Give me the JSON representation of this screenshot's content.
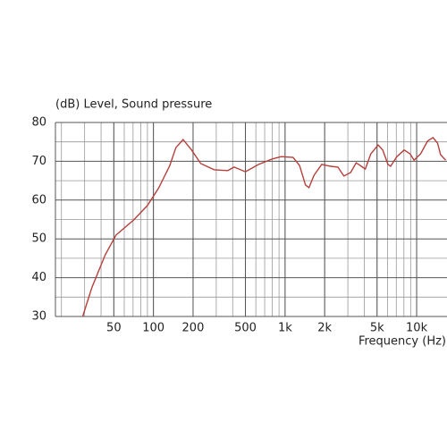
{
  "chart_data": {
    "type": "line",
    "ylabel": "(dB)  Level, Sound pressure",
    "xlabel": "Frequency  (Hz)",
    "xscale": "log",
    "xlim": [
      18,
      17000
    ],
    "ylim": [
      30,
      80
    ],
    "xticks": [
      50,
      100,
      200,
      500,
      {
        "value": 1000,
        "label": "1k"
      },
      {
        "value": 2000,
        "label": "2k"
      },
      {
        "value": 5000,
        "label": "5k"
      },
      {
        "value": 10000,
        "label": "10k"
      }
    ],
    "xgrid": [
      20,
      30,
      40,
      50,
      60,
      70,
      80,
      90,
      100,
      200,
      300,
      400,
      500,
      600,
      700,
      800,
      900,
      1000,
      2000,
      3000,
      4000,
      5000,
      6000,
      7000,
      8000,
      9000,
      10000
    ],
    "yticks": [
      30,
      40,
      50,
      60,
      70,
      80
    ],
    "ygrid": [
      35,
      45,
      55,
      65,
      75
    ],
    "grid": true,
    "series": [
      {
        "color": "#b5403c",
        "x": [
          29,
          34,
          43,
          52,
          71,
          90,
          110,
          133,
          148,
          168,
          195,
          229,
          290,
          367,
          410,
          500,
          630,
          800,
          935,
          1150,
          1290,
          1430,
          1520,
          1660,
          1900,
          2220,
          2520,
          2800,
          3150,
          3470,
          3800,
          4070,
          4480,
          5100,
          5520,
          6060,
          6340,
          7070,
          8040,
          8930,
          9540,
          10700,
          12100,
          13300,
          14400,
          15200,
          16600
        ],
        "values": [
          30,
          37.4,
          45.9,
          51,
          54.9,
          58.6,
          63.2,
          68.9,
          73.5,
          75.6,
          72.9,
          69.4,
          67.8,
          67.6,
          68.5,
          67.3,
          69.2,
          70.6,
          71.2,
          71,
          68.9,
          63.9,
          63.2,
          66.4,
          69.2,
          68.7,
          68.5,
          66.2,
          67.1,
          69.6,
          68.7,
          68,
          71.9,
          74.2,
          72.9,
          69.2,
          68.7,
          71.2,
          72.9,
          71.9,
          70.3,
          71.9,
          75.2,
          76.1,
          74.7,
          71.7,
          70.3
        ]
      }
    ]
  }
}
